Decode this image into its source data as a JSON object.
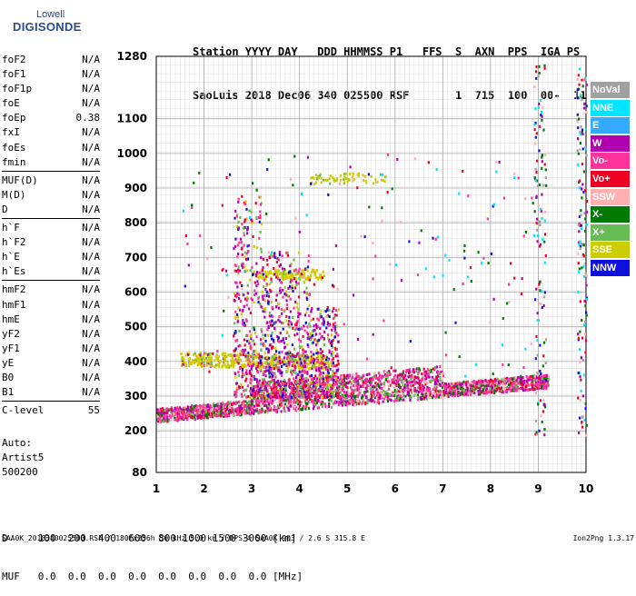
{
  "logo": {
    "line1": "Lowell",
    "line2": "DIGISONDE"
  },
  "header": {
    "line1": "Station YYYY DAY   DDD HHMMSS P1   FFS  S  AXN  PPS  IGA PS",
    "line2": "SaoLuis 2018 Dec06 340 025500 RSF       1  715  100  00-  11"
  },
  "params": [
    [
      {
        "name": "foF2",
        "value": "N/A"
      },
      {
        "name": "foF1",
        "value": "N/A"
      },
      {
        "name": "foF1p",
        "value": "N/A"
      },
      {
        "name": "foE",
        "value": "N/A"
      },
      {
        "name": "foEp",
        "value": "0.38"
      },
      {
        "name": "fxI",
        "value": "N/A"
      },
      {
        "name": "foEs",
        "value": "N/A"
      },
      {
        "name": "fmin",
        "value": "N/A"
      }
    ],
    [
      {
        "name": "MUF(D)",
        "value": "N/A"
      },
      {
        "name": "M(D)",
        "value": "N/A"
      },
      {
        "name": "D",
        "value": "N/A"
      }
    ],
    [
      {
        "name": "h`F",
        "value": "N/A"
      },
      {
        "name": "h`F2",
        "value": "N/A"
      },
      {
        "name": "h`E",
        "value": "N/A"
      },
      {
        "name": "h`Es",
        "value": "N/A"
      }
    ],
    [
      {
        "name": "hmF2",
        "value": "N/A"
      },
      {
        "name": "hmF1",
        "value": "N/A"
      },
      {
        "name": "hmE",
        "value": "N/A"
      },
      {
        "name": "yF2",
        "value": "N/A"
      },
      {
        "name": "yF1",
        "value": "N/A"
      },
      {
        "name": "yE",
        "value": "N/A"
      },
      {
        "name": "B0",
        "value": "N/A"
      },
      {
        "name": "B1",
        "value": "N/A"
      }
    ],
    [
      {
        "name": "C-level",
        "value": "55"
      }
    ]
  ],
  "extra": {
    "line1": "Auto:",
    "line2": "Artist5",
    "line3": "500200"
  },
  "dmuf": {
    "d_line": "D     100  200  400  600  800 1000 1500 3000 [km]",
    "muf_line": "MUF   0.0  0.0  0.0  0.0  0.0  0.0  0.0  0.0 [MHz]"
  },
  "footer": {
    "left": "SAA0K_2018340025500.RSF / 180fx256h 50 kHz 5.0 km / DPS-4 SAA0K 903 / 2.6 S 315.8 E",
    "right": "Ion2Png 1.3.17"
  },
  "legend": [
    {
      "label": "NoVal",
      "color": "#a0a0a0"
    },
    {
      "label": "NNE",
      "color": "#00e5ff"
    },
    {
      "label": "E",
      "color": "#33aaff"
    },
    {
      "label": "W",
      "color": "#b000b0"
    },
    {
      "label": "Vo-",
      "color": "#ff3399"
    },
    {
      "label": "Vo+",
      "color": "#ee0022"
    },
    {
      "label": "SSW",
      "color": "#ffb0b0"
    },
    {
      "label": "X-",
      "color": "#007a00"
    },
    {
      "label": "X+",
      "color": "#66bb55"
    },
    {
      "label": "SSE",
      "color": "#cccc00"
    },
    {
      "label": "NNW",
      "color": "#1010dd"
    }
  ],
  "chart_data": {
    "type": "scatter",
    "title": "",
    "xlabel": "",
    "ylabel": "",
    "xlim": [
      1,
      10
    ],
    "ylim": [
      80,
      1280
    ],
    "x_ticks": [
      1,
      2,
      3,
      4,
      5,
      6,
      7,
      8,
      9,
      10
    ],
    "y_ticks": [
      80,
      200,
      300,
      400,
      500,
      600,
      700,
      800,
      900,
      1000,
      1100,
      1280
    ],
    "grid": true,
    "legend_position": "right",
    "clusters": [
      {
        "name": "bottom trace",
        "x": [
          1.0,
          9.2
        ],
        "y": [
          220,
          340
        ],
        "series": [
          "Vo-",
          "Vo+",
          "W"
        ]
      },
      {
        "name": "E-layer trace",
        "x": [
          1.5,
          4.6
        ],
        "y": [
          370,
          440
        ],
        "series": [
          "SSE"
        ]
      },
      {
        "name": "SSE band 650",
        "x": [
          3.1,
          4.5
        ],
        "y": [
          640,
          670
        ],
        "series": [
          "SSE"
        ]
      },
      {
        "name": "SSE band 930",
        "x": [
          4.2,
          5.8
        ],
        "y": [
          915,
          950
        ],
        "series": [
          "SSE"
        ]
      },
      {
        "name": "spread F column",
        "x": [
          2.6,
          4.8
        ],
        "y": [
          260,
          900
        ],
        "series": [
          "W",
          "Vo-",
          "Vo+"
        ]
      },
      {
        "name": "edge column",
        "x": [
          9.0,
          10.0
        ],
        "y": [
          180,
          1280
        ],
        "series": [
          "NNW",
          "NNE",
          "Vo+",
          "SSW"
        ]
      }
    ]
  }
}
